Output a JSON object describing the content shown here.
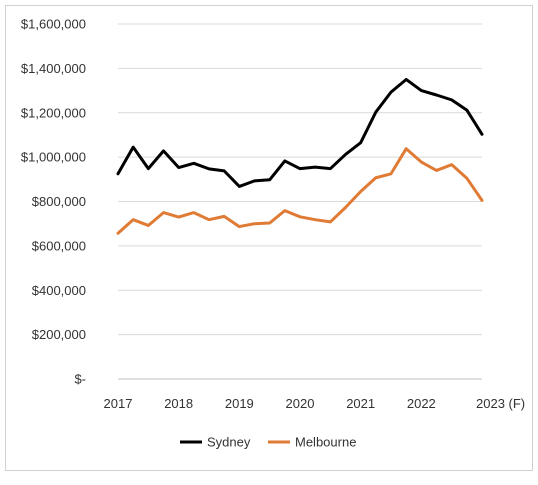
{
  "chart_data": {
    "type": "line",
    "title": "",
    "xlabel": "",
    "ylabel": "",
    "grid": true,
    "legend_position": "bottom",
    "ylim": [
      0,
      1600000
    ],
    "y_ticks": [
      {
        "value": 0,
        "label": "$-"
      },
      {
        "value": 200000,
        "label": "$200,000"
      },
      {
        "value": 400000,
        "label": "$400,000"
      },
      {
        "value": 600000,
        "label": "$600,000"
      },
      {
        "value": 800000,
        "label": "$800,000"
      },
      {
        "value": 1000000,
        "label": "$1,000,000"
      },
      {
        "value": 1200000,
        "label": "$1,200,000"
      },
      {
        "value": 1400000,
        "label": "$1,400,000"
      },
      {
        "value": 1600000,
        "label": "$1,600,000"
      }
    ],
    "x_ticks": [
      {
        "value": 2017,
        "label": "2017"
      },
      {
        "value": 2018,
        "label": "2018"
      },
      {
        "value": 2019,
        "label": "2019"
      },
      {
        "value": 2020,
        "label": "2020"
      },
      {
        "value": 2021,
        "label": "2021"
      },
      {
        "value": 2022,
        "label": "2022"
      },
      {
        "value": 2023,
        "label": "2023 (F)"
      }
    ],
    "xlim": [
      2017,
      2023
    ],
    "x": [
      2017,
      2017.25,
      2017.5,
      2017.75,
      2018,
      2018.25,
      2018.5,
      2018.75,
      2019,
      2019.25,
      2019.5,
      2019.75,
      2020,
      2020.25,
      2020.5,
      2020.75,
      2021,
      2021.25,
      2021.5,
      2021.75,
      2022,
      2022.25,
      2022.5,
      2022.75,
      2023
    ],
    "series": [
      {
        "name": "Sydney",
        "color": "#000000",
        "values": [
          925000,
          1045000,
          948000,
          1028000,
          953000,
          972000,
          947000,
          938000,
          868000,
          893000,
          898000,
          983000,
          948000,
          955000,
          948000,
          1012000,
          1065000,
          1203000,
          1293000,
          1350000,
          1300000,
          1280000,
          1258000,
          1212000,
          1103000
        ]
      },
      {
        "name": "Melbourne",
        "color": "#e07b35",
        "values": [
          657000,
          718000,
          692000,
          750000,
          730000,
          750000,
          718000,
          733000,
          687000,
          700000,
          703000,
          759000,
          731000,
          718000,
          708000,
          773000,
          845000,
          907000,
          925000,
          1038000,
          978000,
          940000,
          966000,
          905000,
          805000
        ]
      }
    ]
  }
}
